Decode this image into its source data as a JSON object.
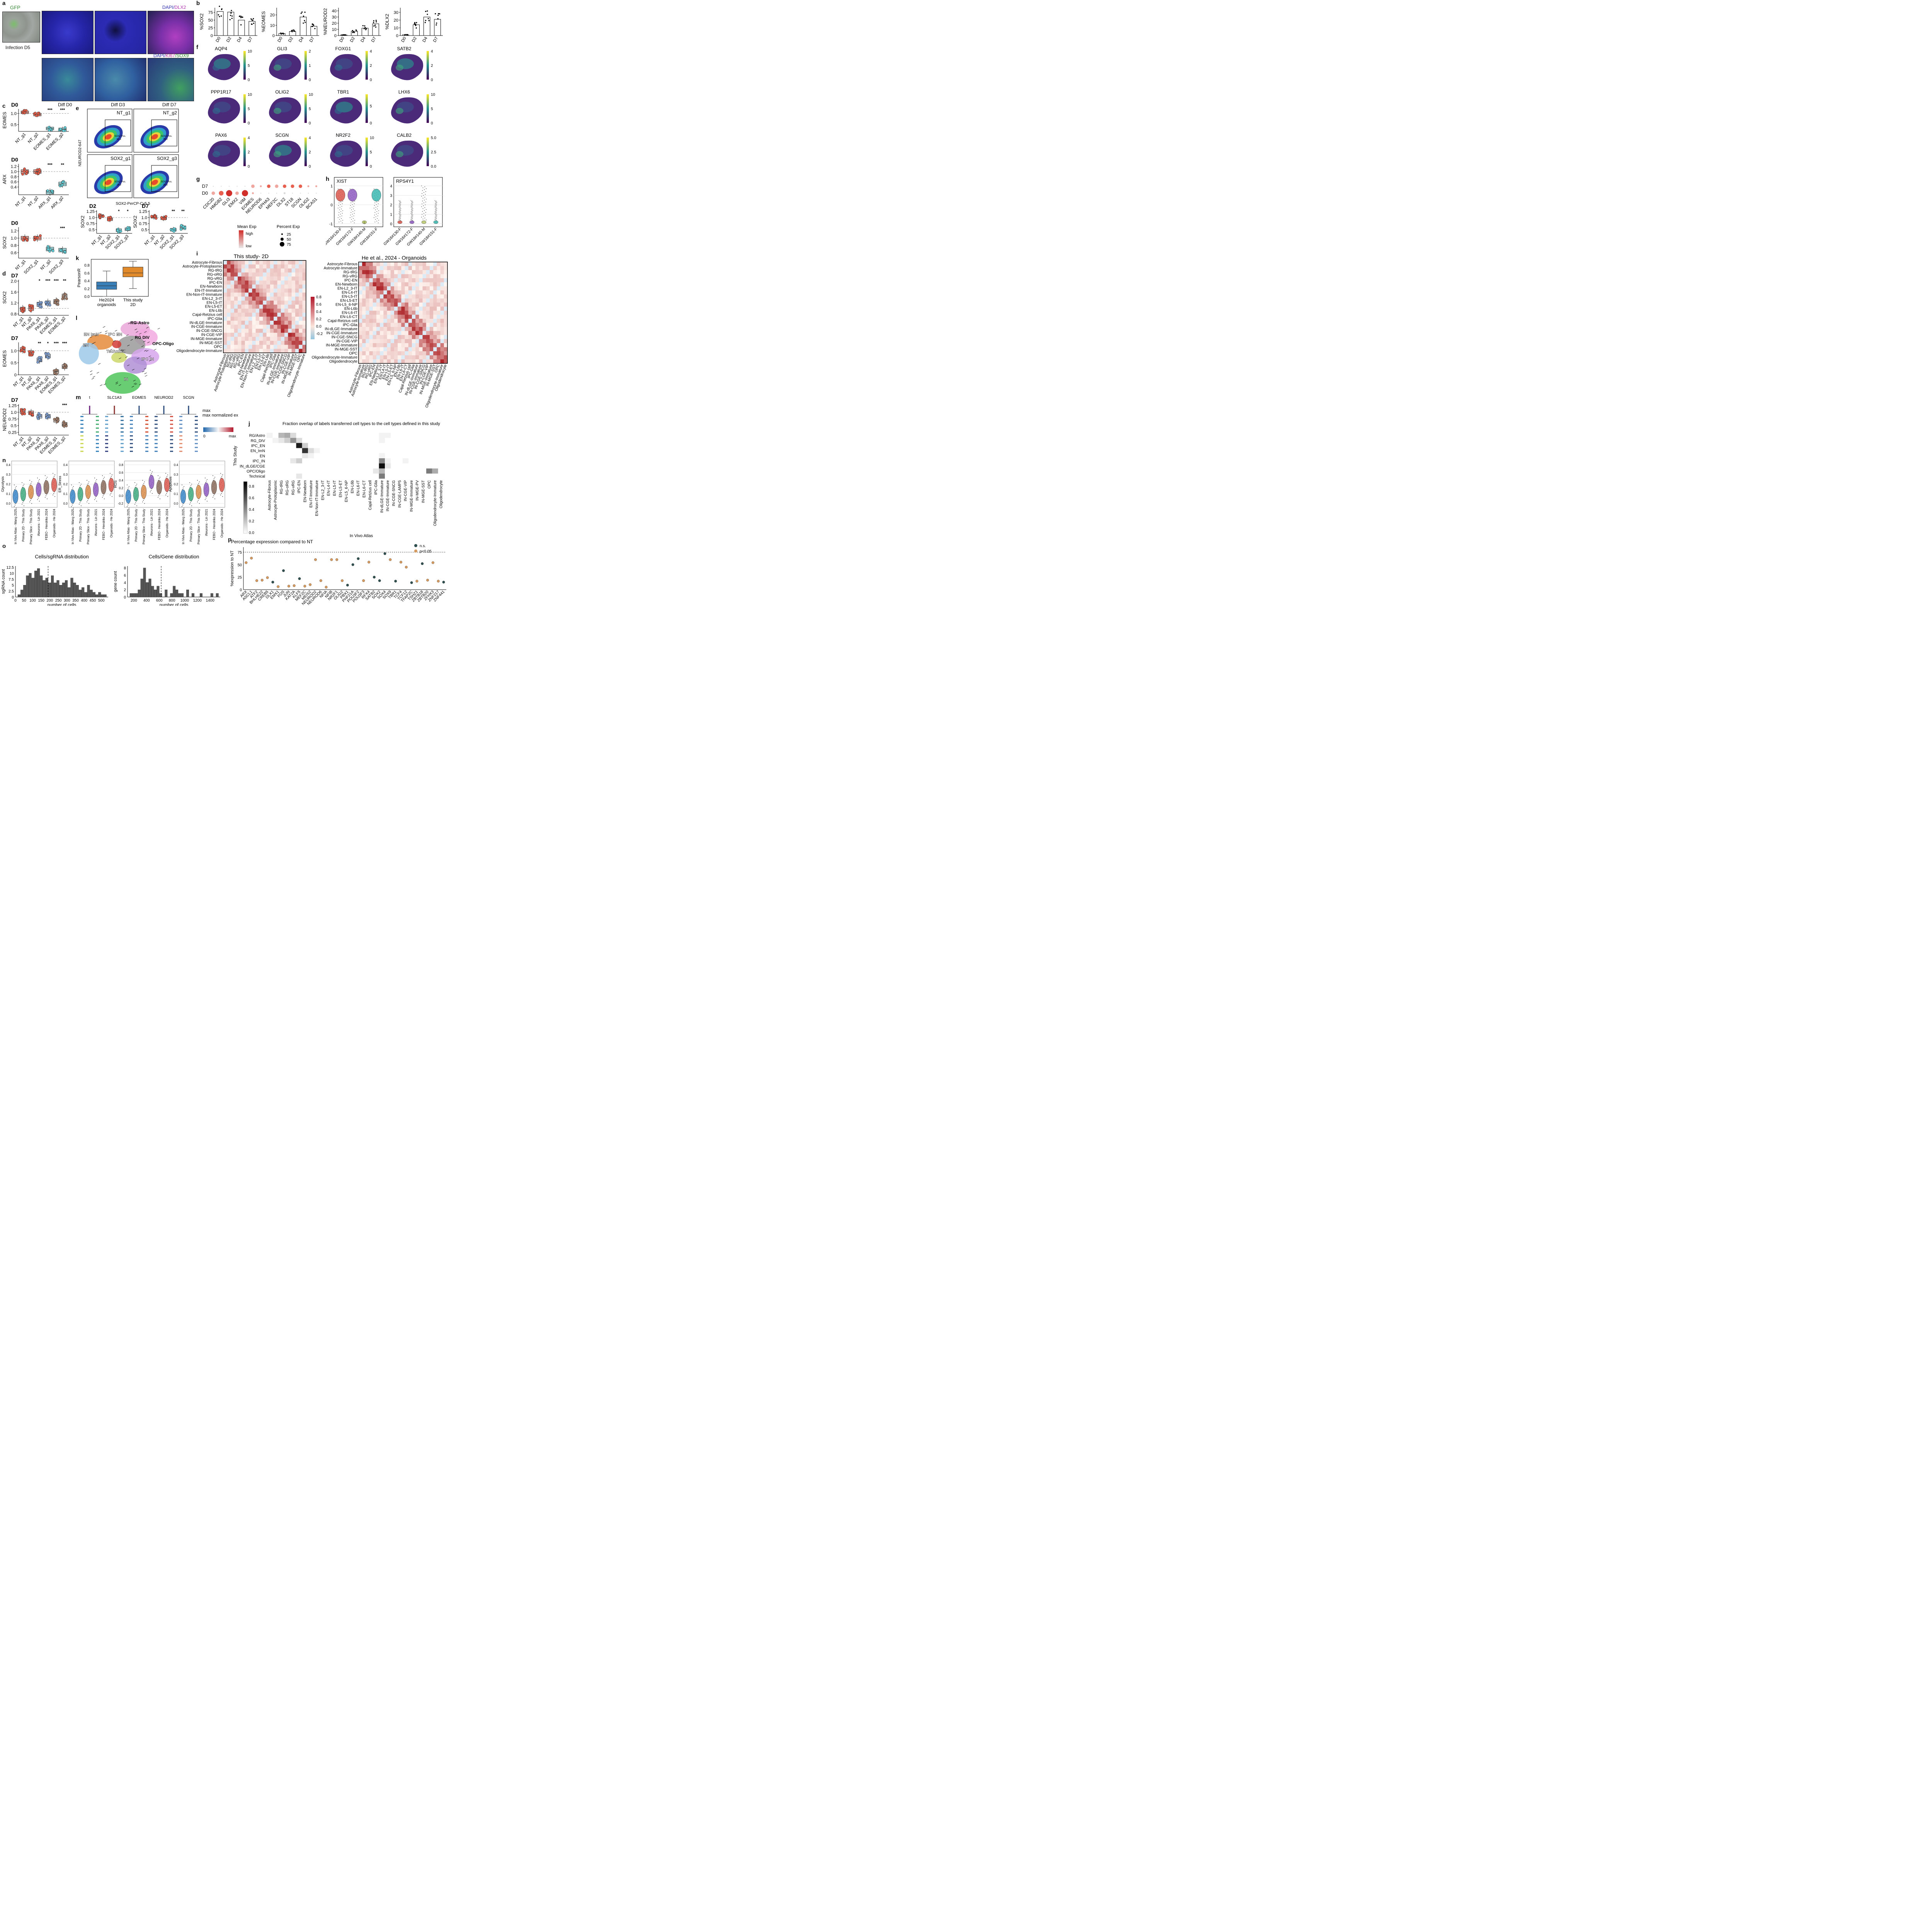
{
  "panels": {
    "a": "a",
    "b": "b",
    "c": "c",
    "d": "d",
    "e": "e",
    "f": "f",
    "g": "g",
    "h": "h",
    "i": "i",
    "j": "j",
    "k": "k",
    "l": "l",
    "m": "m",
    "n": "n",
    "o": "o",
    "p": "p"
  },
  "panel_a": {
    "gfp_title": "GFP",
    "infection_caption": "Infection D5",
    "stain_top_dapi": "DAPI/",
    "stain_top_dlx2": "DLX2",
    "stain_bottom_dapi": "DAPI/",
    "stain_bottom_ki67": "KI67",
    "stain_bottom_sox9": "/SOX9",
    "columns": [
      "Diff D0",
      "Diff D3",
      "Diff D7"
    ]
  },
  "chart_data": [
    {
      "id": "b1",
      "type": "bar",
      "ylabel": "%SOX2",
      "categories": [
        "D0",
        "D2",
        "D4",
        "D7"
      ],
      "values": [
        78,
        76,
        50,
        46
      ],
      "ylim": [
        0,
        90
      ],
      "yticks": [
        0,
        25,
        50,
        75
      ]
    },
    {
      "id": "b2",
      "type": "bar",
      "ylabel": "%EOMES",
      "categories": [
        "D0",
        "D2",
        "D4",
        "D7"
      ],
      "values": [
        2,
        4,
        18,
        9
      ],
      "ylim": [
        0,
        27
      ],
      "yticks": [
        0,
        10,
        20
      ]
    },
    {
      "id": "b3",
      "type": "bar",
      "ylabel": "%NEUROD2",
      "categories": [
        "D0",
        "D2",
        "D4",
        "D7"
      ],
      "values": [
        1,
        7,
        12,
        19
      ],
      "ylim": [
        0,
        45
      ],
      "yticks": [
        0,
        10,
        20,
        30,
        40
      ]
    },
    {
      "id": "b4",
      "type": "bar",
      "ylabel": "%DLX2",
      "categories": [
        "D0",
        "D2",
        "D4",
        "D7"
      ],
      "values": [
        1,
        14,
        24,
        21
      ],
      "ylim": [
        0,
        36
      ],
      "yticks": [
        0,
        10,
        20,
        30
      ]
    },
    {
      "id": "c1",
      "type": "box",
      "title": "D0",
      "ylabel": "EOMES",
      "categories": [
        "NT_g1",
        "NT_g2",
        "EOMES_g1",
        "EOMES_g2"
      ],
      "medians": [
        1.05,
        0.95,
        0.33,
        0.29
      ],
      "ylim": [
        0.2,
        1.2
      ],
      "yticks": [
        0.5,
        1.0
      ],
      "sig": [
        "",
        "",
        "***",
        "***"
      ]
    },
    {
      "id": "c2",
      "type": "box",
      "title": "D0",
      "ylabel": "ARX",
      "categories": [
        "NT_g1",
        "NT_g2",
        "ARX_g1",
        "ARX_g2"
      ],
      "medians": [
        1.0,
        1.0,
        0.2,
        0.52
      ],
      "ylim": [
        0.1,
        1.3
      ],
      "yticks": [
        0.4,
        0.6,
        0.8,
        1.0,
        1.2
      ],
      "yticklabels": [
        "0.4",
        "0.6",
        "0.8",
        "1.0",
        "1.2"
      ],
      "sig": [
        "",
        "",
        "***",
        "**"
      ]
    },
    {
      "id": "c3",
      "type": "box",
      "title": "D0",
      "ylabel": "SOX2",
      "categories": [
        "NT_g1",
        "SOX2_g1",
        "NT_g2",
        "SOX2_g3"
      ],
      "medians": [
        1.0,
        1.0,
        0.7,
        0.67
      ],
      "ylim": [
        0.45,
        1.3
      ],
      "yticks": [
        0.6,
        0.8,
        1.0,
        1.2
      ],
      "sig": [
        "",
        "",
        "",
        "***"
      ]
    },
    {
      "id": "d1",
      "type": "box",
      "title": "D7",
      "ylabel": "SOX2",
      "categories": [
        "NT_g1",
        "NT_g2",
        "PAX6_g1",
        "PAX6_g2",
        "EOMES_g1",
        "EOMES_g2"
      ],
      "medians": [
        0.97,
        1.0,
        1.15,
        1.2,
        1.25,
        1.45
      ],
      "ylim": [
        0.75,
        2.05
      ],
      "yticks": [
        0.8,
        1.2,
        1.6,
        2.0
      ],
      "sig": [
        "",
        "",
        "*",
        "***",
        "***",
        "**"
      ]
    },
    {
      "id": "d2",
      "type": "box",
      "title": "D7",
      "ylabel": "EOMES",
      "categories": [
        "NT_g1",
        "NT_g2",
        "PAX6_g1",
        "PAX6_g2",
        "EOMES_g1",
        "EOMES_g2"
      ],
      "medians": [
        1.05,
        0.92,
        0.62,
        0.78,
        0.13,
        0.34
      ],
      "ylim": [
        0.0,
        1.35
      ],
      "yticks": [
        0.0,
        0.5,
        1.0
      ],
      "sig": [
        "",
        "",
        "**",
        "*",
        "***",
        "***"
      ]
    },
    {
      "id": "d3",
      "type": "box",
      "title": "D7",
      "ylabel": "NEUROD2",
      "categories": [
        "NT_g1",
        "NT_g2",
        "PAX6_g1",
        "PAX6_g2",
        "EOMES_g1",
        "EOMES_g2"
      ],
      "medians": [
        1.02,
        0.98,
        0.85,
        0.85,
        0.7,
        0.55
      ],
      "ylim": [
        0.15,
        1.3
      ],
      "yticks": [
        0.25,
        0.5,
        0.75,
        1.0,
        1.25
      ],
      "sig": [
        "",
        "",
        "",
        "",
        "",
        "***"
      ]
    },
    {
      "id": "e_box1",
      "type": "box",
      "title": "D2",
      "ylabel": "SOX2",
      "categories": [
        "NT_g1",
        "NT_g2",
        "SOX2_g1",
        "SOX2_g3"
      ],
      "medians": [
        1.06,
        0.93,
        0.48,
        0.52
      ],
      "ylim": [
        0.35,
        1.3
      ],
      "yticks": [
        0.5,
        0.75,
        1.0,
        1.25
      ],
      "sig": [
        "",
        "",
        "*",
        "*"
      ]
    },
    {
      "id": "e_box2",
      "type": "box",
      "title": "D7",
      "ylabel": "SOX2",
      "categories": [
        "NT_g1",
        "NT_g2",
        "SOX2_g1",
        "SOX2_g3"
      ],
      "medians": [
        1.03,
        0.97,
        0.5,
        0.6
      ],
      "ylim": [
        0.35,
        1.3
      ],
      "yticks": [
        0.5,
        0.75,
        1.0,
        1.25
      ],
      "sig": [
        "",
        "",
        "**",
        "**"
      ]
    },
    {
      "id": "k",
      "type": "box",
      "ylabel": "PearsonR",
      "categories": [
        "He2024 organoids",
        "This study 2D"
      ],
      "medians": [
        0.27,
        0.6
      ],
      "q1": [
        0.18,
        0.5
      ],
      "q3": [
        0.37,
        0.75
      ],
      "whisk_lo": [
        0.0,
        0.2
      ],
      "whisk_hi": [
        0.65,
        0.9
      ]
    },
    {
      "id": "o1",
      "type": "bar",
      "title": "Cells/sgRNA distribution",
      "xlabel": "number of cells",
      "ylabel": "sgRNA count",
      "xticks": [
        0,
        50,
        100,
        150,
        200,
        250,
        300,
        350,
        400,
        450,
        500
      ],
      "yticks": [
        0,
        2.5,
        5.0,
        7.5,
        10.0,
        12.5
      ],
      "values": [
        1,
        3,
        5,
        9,
        10,
        8,
        11,
        12,
        9,
        7,
        8,
        6,
        9,
        6,
        7,
        5,
        6,
        7,
        4,
        8,
        6,
        5,
        3,
        4,
        2,
        5,
        3,
        2,
        1,
        2,
        1,
        1
      ],
      "ylim": [
        0,
        13
      ],
      "median_line": 190
    },
    {
      "id": "o2",
      "type": "bar",
      "title": "Cells/Gene distribution",
      "xlabel": "number of cells",
      "ylabel": "gene count",
      "xticks": [
        200,
        400,
        600,
        800,
        1000,
        1200,
        1400
      ],
      "yticks": [
        0,
        2,
        4,
        6,
        8
      ],
      "values": [
        1,
        1,
        1,
        2,
        5,
        8,
        4,
        5,
        3,
        2,
        3,
        1,
        0,
        2,
        0,
        1,
        3,
        2,
        1,
        1,
        0,
        2,
        0,
        1,
        0,
        0,
        1,
        0,
        0,
        0,
        1,
        0,
        1
      ],
      "ylim": [
        0,
        8.5
      ],
      "median_line": 630
    },
    {
      "id": "p",
      "type": "scatter",
      "title": "Percentage expression compared to NT",
      "xlabel": "In Vivo Atlas",
      "ylabel": "%expression to NT",
      "legend": [
        "n.s.",
        "p<0.05"
      ],
      "yticks": [
        0,
        25,
        50,
        75
      ],
      "threshold": 75,
      "genes": [
        "ARX",
        "ASCL1",
        "ATF2",
        "BHLHE22",
        "CREB5",
        "DLX1",
        "EMX1",
        "FOS",
        "JUN",
        "KAT2A",
        "KLF5",
        "MEF2C",
        "MEIS2",
        "NEUROD2",
        "NEUROD6",
        "NFIA",
        "NFIB",
        "NR2F1",
        "OLIG2",
        "PBX1",
        "PHF21A",
        "POU3F2",
        "POU3F3",
        "RFX4",
        "SATB2",
        "SOX2",
        "SOX4",
        "SOX9",
        "TBR1",
        "TCF4",
        "TCF12",
        "TFAP2C",
        "TSHZ1",
        "ZBTB18",
        "ZBTB20",
        "ZFHX3",
        "ZNF217",
        "ZNF441"
      ],
      "values": [
        54,
        63,
        18,
        19,
        24,
        15,
        6,
        38,
        7,
        8,
        22,
        7,
        10,
        60,
        18,
        5,
        60,
        60,
        18,
        9,
        50,
        62,
        18,
        55,
        25,
        18,
        72,
        60,
        17,
        55,
        45,
        14,
        17,
        52,
        19,
        54,
        17,
        15
      ],
      "ns": [
        0,
        0,
        0,
        0,
        0,
        1,
        0,
        1,
        0,
        0,
        1,
        0,
        0,
        0,
        0,
        0,
        0,
        0,
        0,
        1,
        1,
        1,
        0,
        0,
        1,
        1,
        1,
        0,
        1,
        0,
        0,
        1,
        0,
        1,
        0,
        0,
        0,
        1
      ]
    }
  ],
  "panel_e": {
    "ylabel": "NEUROD2-647",
    "xlabel": "SOX2-PerCP-Cy5.5",
    "gate_label": "SOX2 Pos.",
    "plots": [
      {
        "name": "NT_g1",
        "pct": "61.1"
      },
      {
        "name": "NT_g2",
        "pct": "76.0"
      },
      {
        "name": "SOX2_g1",
        "pct": "24.2"
      },
      {
        "name": "SOX2_g3",
        "pct": "28.5"
      }
    ]
  },
  "panel_f": {
    "genes": [
      {
        "name": "AQP4",
        "ticks": [
          "10",
          "5",
          "0"
        ]
      },
      {
        "name": "GLI3",
        "ticks": [
          "2",
          "1",
          "0"
        ]
      },
      {
        "name": "FOXG1",
        "ticks": [
          "4",
          "2",
          "0"
        ]
      },
      {
        "name": "SATB2",
        "ticks": [
          "4",
          "2",
          "0"
        ]
      },
      {
        "name": "PPP1R17",
        "ticks": [
          "10",
          "5",
          "0"
        ]
      },
      {
        "name": "OLIG2",
        "ticks": [
          "10",
          "5",
          "0"
        ]
      },
      {
        "name": "TBR1",
        "ticks": [
          "5",
          "0"
        ]
      },
      {
        "name": "LHX6",
        "ticks": [
          "10",
          "5",
          "0"
        ]
      },
      {
        "name": "PAX6",
        "ticks": [
          "4",
          "2",
          "0"
        ]
      },
      {
        "name": "SCGN",
        "ticks": [
          "4",
          "2",
          "0"
        ]
      },
      {
        "name": "NR2F2",
        "ticks": [
          "10",
          "5",
          "0"
        ]
      },
      {
        "name": "CALB2",
        "ticks": [
          "5.0",
          "2.5",
          "0.0"
        ]
      }
    ]
  },
  "panel_g": {
    "rows": [
      "D7",
      "D0"
    ],
    "genes": [
      "CDC20",
      "HMGB2",
      "GLI3",
      "EMX2",
      "VIM",
      "EOMES",
      "NEUROD6",
      "EPHA3",
      "MEF2C",
      "DLX2",
      "ST18",
      "SCGN",
      "OLIG2",
      "BCAS1"
    ],
    "legend_title_color": "Mean Exp",
    "legend_high": "high",
    "legend_low": "low",
    "legend_title_size": "Percent Exp",
    "legend_sizes": [
      "25",
      "50",
      "75"
    ],
    "d7_size": [
      0,
      0,
      0,
      0,
      0,
      2,
      1,
      2,
      2,
      2,
      2,
      2,
      1,
      1
    ],
    "d0_size": [
      2,
      3,
      4,
      2,
      4,
      1,
      0,
      0,
      0,
      1,
      0,
      0,
      0,
      0
    ],
    "d7_color": [
      0,
      0,
      0,
      0,
      0,
      1,
      1,
      2,
      1,
      2,
      2,
      2,
      1,
      1
    ],
    "d0_color": [
      1,
      2,
      3,
      1,
      3,
      1,
      0,
      0,
      0,
      0,
      0,
      0,
      0,
      0
    ]
  },
  "panel_h": {
    "titles": [
      "XIST",
      "RPS4Y1"
    ],
    "samples": [
      "GW16#130-F",
      "GW16#172-F",
      "GW18#140-M",
      "GW18#151-F"
    ],
    "xist_yticks": [
      "1",
      "0",
      "-1"
    ],
    "rps_yticks": [
      "4",
      "3",
      "2",
      "1",
      "0"
    ]
  },
  "panel_i": {
    "title_left": "This study- 2D",
    "title_right": "He et al., 2024 - Organoids",
    "rows_left": [
      "Astrocyte-Fibrous",
      "Astrocyte-Protoplasmic",
      "RG-tRG",
      "RG-oRG",
      "RG-vRG",
      "IPC-EN",
      "EN-Newborn",
      "EN-IT-Immature",
      "EN-Non-IT-Immature",
      "EN-L2_3-IT",
      "EN-L5-IT",
      "EN-L5-ET",
      "EN-L6b",
      "Cajal-Retzius cell",
      "IPC-Glia",
      "IN-dLGE-Immature",
      "IN-CGE-Immature",
      "IN-CGE-SNCG",
      "IN-CGE-VIP",
      "IN-MGE-Immature",
      "IN-MGE-SST",
      "OPC",
      "Oligodendrocyte-Immature"
    ],
    "rows_right": [
      "Astrocyte-Fibrous",
      "Astrocyte-Immature",
      "RG-tRG",
      "RG-vRG",
      "IPC-EN",
      "EN-Newborn",
      "EN-L2_3-IT",
      "EN-L4-IT",
      "EN-L5-IT",
      "EN-L5-ET",
      "EN-L5_6-NP",
      "EN-L6b",
      "EN-L6-IT",
      "EN-L6-CT",
      "Cajal-Retzius cell",
      "IPC-Glia",
      "IN-dLGE-Immature",
      "IN-CGE-Immature",
      "IN-CGE-SNCG",
      "IN-CGE-VIP",
      "IN-MGE-Immature",
      "IN-MGE-SST",
      "OPC",
      "Oligodendrocyte-Immature",
      "Oligodendrocyte"
    ],
    "cbar_ticks": [
      "0.8",
      "0.6",
      "0.4",
      "0.2",
      "0.0",
      "-0.2"
    ]
  },
  "panel_j": {
    "title": "Fraction overlap of labels transferred cell types to the cell types defined in this study",
    "ylabel": "This Study",
    "xlabel": "In Vivo Atlas",
    "rows": [
      "RG/Astro",
      "RG_DIV",
      "IPC_EN",
      "EN_ImN",
      "EN",
      "IPC_IN",
      "IN_dLGE/CGE",
      "OPC/Oligo",
      "Technical"
    ],
    "cols": [
      "Astrocyte-Fibrous",
      "Astrocyte-Protoplasmic",
      "RG-tRG",
      "RG-oRG",
      "RG-vRG",
      "IPC-EN",
      "EN-Newborn",
      "EN-IT-Immature",
      "EN-Non-IT-Immature",
      "EN-L2_3-IT",
      "EN-L4-IT",
      "EN-L5-IT",
      "EN-L5-ET",
      "EN-L5_6-NP",
      "EN-L6b",
      "EN-L6-IT",
      "EN-L6-CT",
      "Cajal-Retzius cell",
      "IPC-Glia",
      "IN-dLGE-Immature",
      "IN-CGE-Immature",
      "IN-CGE-SNCG",
      "IN-CGE-LAMP5",
      "IN-CGE-VIP",
      "IN-MGE-Immature",
      "IN-MGE-PV",
      "IN-MGE-SST",
      "OPC",
      "Oligodendrocyte-Immature",
      "Oligodendrocyte"
    ],
    "cells": [
      [
        0,
        0.1
      ],
      [
        0,
        0.05
      ],
      [
        2,
        0.3
      ],
      [
        3,
        0.35
      ],
      [
        4,
        0.15
      ],
      [
        19,
        0.05
      ],
      [
        20,
        0.05
      ],
      [
        1,
        0.05
      ],
      [
        2,
        0.1
      ],
      [
        3,
        0.2
      ],
      [
        4,
        0.45
      ],
      [
        5,
        0.15
      ],
      [
        19,
        0.05
      ],
      [
        5,
        0.95
      ],
      [
        6,
        0.2
      ],
      [
        6,
        0.85
      ],
      [
        7,
        0.15
      ],
      [
        8,
        0.05
      ],
      [
        6,
        0.1
      ],
      [
        7,
        0.05
      ],
      [
        19,
        0.05
      ],
      [
        4,
        0.1
      ],
      [
        5,
        0.2
      ],
      [
        19,
        0.5
      ],
      [
        20,
        0.05
      ],
      [
        23,
        0.05
      ],
      [
        19,
        1.0
      ],
      [
        20,
        0.1
      ],
      [
        18,
        0.1
      ],
      [
        19,
        0.3
      ],
      [
        27,
        0.55
      ],
      [
        28,
        0.35
      ],
      [
        5,
        0.1
      ],
      [
        19,
        0.55
      ]
    ],
    "cbar_ticks": [
      "0.8",
      "0.6",
      "0.4",
      "0.2",
      "0.0"
    ]
  },
  "panel_k": {
    "ylabel": "PearsonR",
    "yticks": [
      "0.8",
      "0.6",
      "0.4",
      "0.2",
      "0.0"
    ],
    "cat1": "He2024\norganoids",
    "cat1a": "He2024",
    "cat1b": "organoids",
    "cat2a": "This study",
    "cat2b": "2D"
  },
  "panel_l": {
    "clusters": [
      "RG-Astro",
      "EN ImN",
      "IPC EN",
      "RG DIV",
      "OPC-Oligo",
      "EN",
      "Technical",
      "IPC IN",
      "IN"
    ]
  },
  "panel_m": {
    "genes": [
      "t",
      "SLC1A3",
      "EOMES",
      "NEUROD2",
      "SCGN"
    ],
    "legend_title": "max normalized expression",
    "legend_min": "0",
    "legend_max": "max"
  },
  "panel_n": {
    "ylabels": [
      "Glycolysis",
      "ER_Stress",
      "ROS",
      "Apoptosis"
    ],
    "groups": [
      "In Vivo Atlas - Wang 2025",
      "Primary 2D - This Study",
      "Primary Slice - This Study",
      "iNeurons - Lin 2021",
      "FEBO - Hendriks 2024",
      "Organoids - He 2024"
    ],
    "ticks": [
      [
        "0.4",
        "0.3",
        "0.2",
        "0.1",
        "0.0"
      ],
      [
        "0.4",
        "0.3",
        "0.2",
        "0.1",
        "0.0"
      ],
      [
        "0.8",
        "0.6",
        "0.4",
        "0.2",
        "0.0",
        "-0.2"
      ],
      [
        "0.4",
        "0.3",
        "0.2",
        "0.1",
        "0.0"
      ]
    ],
    "colors": [
      "#3a86c8",
      "#3daa7e",
      "#d88c4a",
      "#8e5bc0",
      "#8a6b5a",
      "#d9574e"
    ]
  }
}
